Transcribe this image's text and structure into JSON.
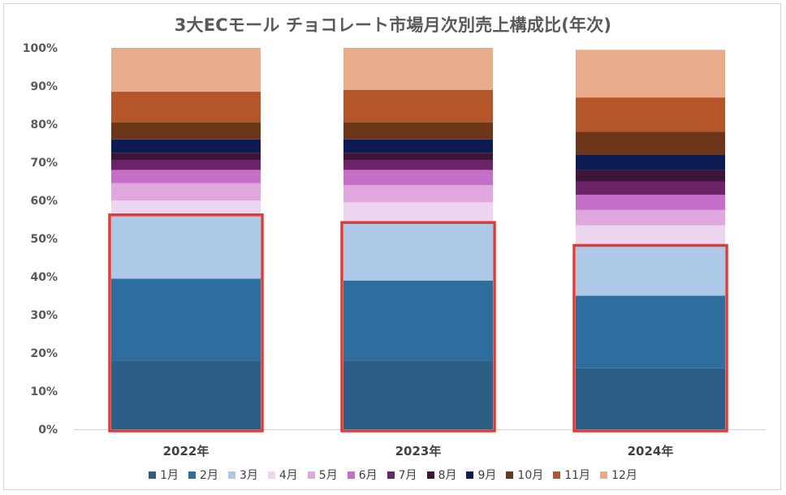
{
  "chart_data": {
    "type": "bar",
    "stacked": true,
    "percent_stacked": true,
    "title": "3大ECモール チョコレート市場月次別売上構成比(年次)",
    "categories": [
      "2022年",
      "2023年",
      "2024年"
    ],
    "ylim": [
      0,
      100
    ],
    "yticks": [
      "0%",
      "10%",
      "20%",
      "30%",
      "40%",
      "50%",
      "60%",
      "70%",
      "80%",
      "90%",
      "100%"
    ],
    "grid": false,
    "legend_position": "bottom",
    "series": [
      {
        "name": "1月",
        "color": "#2c5f86",
        "values": [
          18,
          18,
          16
        ]
      },
      {
        "name": "2月",
        "color": "#2e6e9e",
        "values": [
          21.5,
          21,
          19
        ]
      },
      {
        "name": "3月",
        "color": "#aec9e8",
        "values": [
          16.5,
          15,
          13
        ]
      },
      {
        "name": "4月",
        "color": "#ecd6ef",
        "values": [
          4,
          5.5,
          5.5
        ]
      },
      {
        "name": "5月",
        "color": "#dfa7dd",
        "values": [
          4.5,
          4.5,
          4
        ]
      },
      {
        "name": "6月",
        "color": "#c66fc9",
        "values": [
          3.5,
          4,
          4
        ]
      },
      {
        "name": "7月",
        "color": "#6c2367",
        "values": [
          2.5,
          2.5,
          3.5
        ]
      },
      {
        "name": "8月",
        "color": "#3c1538",
        "values": [
          2,
          2,
          3
        ]
      },
      {
        "name": "9月",
        "color": "#0d1b55",
        "values": [
          3.5,
          3.5,
          4
        ]
      },
      {
        "name": "10月",
        "color": "#6d3618",
        "values": [
          4.5,
          4.5,
          6
        ]
      },
      {
        "name": "11月",
        "color": "#b4562a",
        "values": [
          8,
          8.5,
          9
        ]
      },
      {
        "name": "12月",
        "color": "#e8ac8b",
        "values": [
          11.5,
          11,
          12.5
        ]
      }
    ],
    "highlight": {
      "color": "#e03a35",
      "series_included": [
        "1月",
        "2月",
        "3月"
      ]
    }
  }
}
